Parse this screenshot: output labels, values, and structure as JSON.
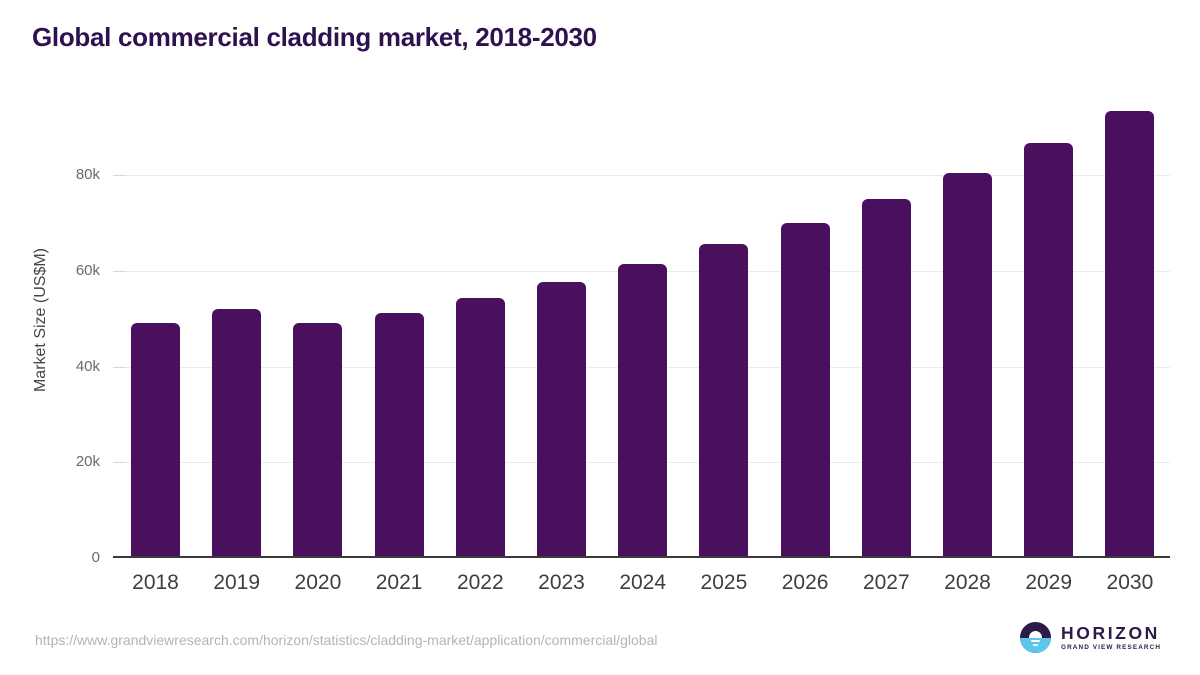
{
  "title": "Global commercial cladding market, 2018-2030",
  "source_url": "https://www.grandviewresearch.com/horizon/statistics/cladding-market/application/commercial/global",
  "logo": {
    "name": "HORIZON",
    "subname": "GRAND VIEW RESEARCH",
    "icon": "horizon-sunset-icon"
  },
  "colors": {
    "bar": "#4a105e",
    "title": "#2f1150",
    "axis_line": "#3a3a3a",
    "gridline": "#ebebeb",
    "tick": "#d9d9d9",
    "x_tick_label": "#3e3e3e",
    "y_tick_label": "#6b6b6b",
    "y_axis_title": "#454545",
    "url_text": "#b4b4b4",
    "logo_purple": "#2e1a47",
    "logo_blue": "#5bc6ee",
    "background": "#ffffff"
  },
  "chart_data": {
    "type": "bar",
    "title": "Global commercial cladding market, 2018-2030",
    "categories": [
      "2018",
      "2019",
      "2020",
      "2021",
      "2022",
      "2023",
      "2024",
      "2025",
      "2026",
      "2027",
      "2028",
      "2029",
      "2030"
    ],
    "values": [
      49200,
      52000,
      49100,
      51200,
      54300,
      57600,
      61400,
      65600,
      70000,
      74900,
      80500,
      86600,
      93400
    ],
    "xlabel": "",
    "ylabel": "Market Size (US$M)",
    "ylim": [
      0,
      97000
    ],
    "yticks": [
      {
        "value": 0,
        "label": "0"
      },
      {
        "value": 20000,
        "label": "20k"
      },
      {
        "value": 40000,
        "label": "40k"
      },
      {
        "value": 60000,
        "label": "60k"
      },
      {
        "value": 80000,
        "label": "80k"
      }
    ],
    "grid": "horizontal",
    "legend": "none",
    "bar_color": "#4a105e",
    "value_unit": "US$M"
  }
}
